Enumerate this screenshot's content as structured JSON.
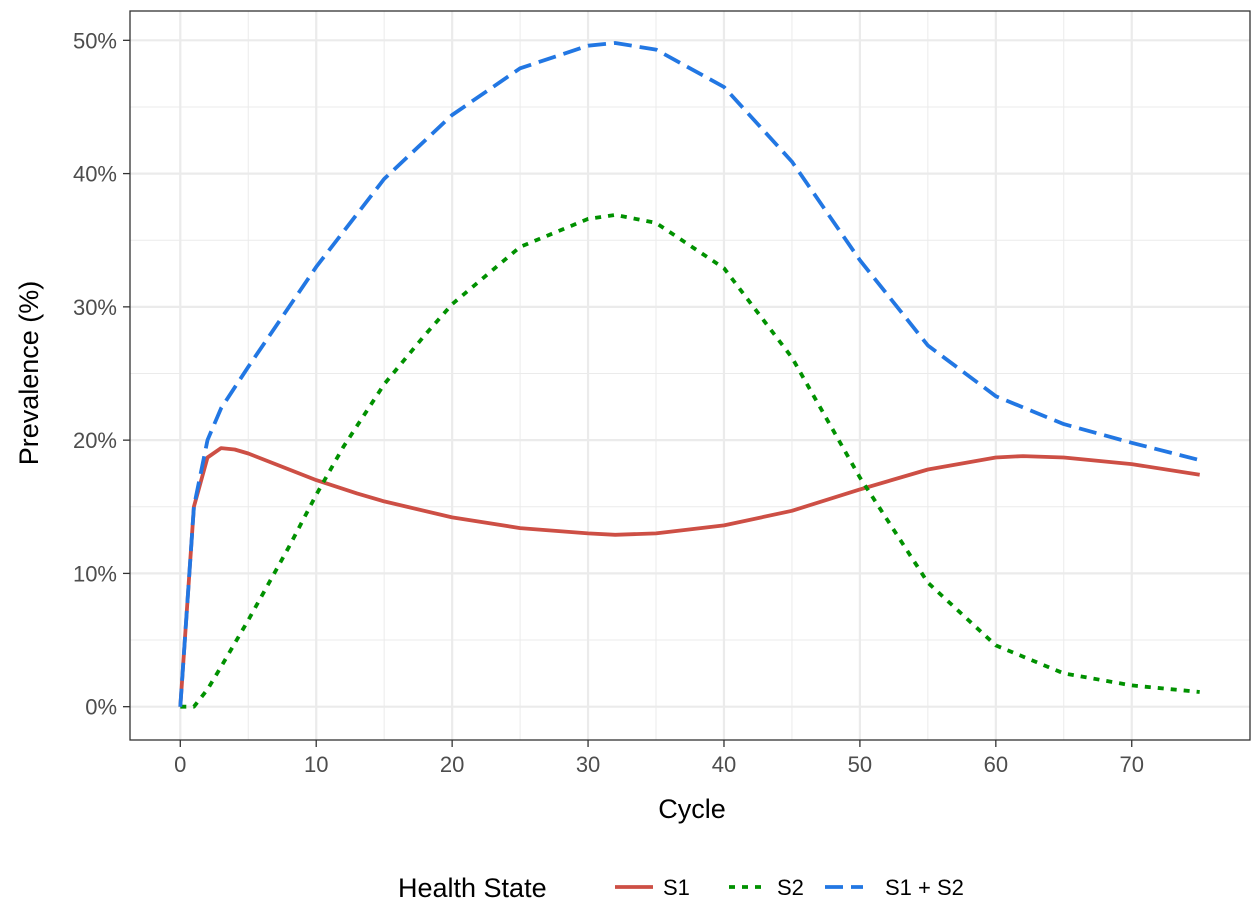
{
  "chart_data": {
    "type": "line",
    "xlabel": "Cycle",
    "ylabel": "Prevalence (%)",
    "xlim": [
      -3.7,
      78.7
    ],
    "ylim": [
      -2.5,
      52.2
    ],
    "x_ticks": [
      0,
      10,
      20,
      30,
      40,
      50,
      60,
      70
    ],
    "y_ticks": [
      0,
      10,
      20,
      30,
      40,
      50
    ],
    "y_tick_labels": [
      "0%",
      "10%",
      "20%",
      "30%",
      "40%",
      "50%"
    ],
    "grid": true,
    "legend": {
      "title": "Health State",
      "position": "bottom"
    },
    "series": [
      {
        "name": "S1",
        "color": "#cd4f45",
        "dash": "solid",
        "points": [
          [
            0,
            0
          ],
          [
            1,
            15
          ],
          [
            2,
            18.7
          ],
          [
            3,
            19.4
          ],
          [
            4,
            19.3
          ],
          [
            5,
            19.0
          ],
          [
            7,
            18.2
          ],
          [
            10,
            17.0
          ],
          [
            13,
            16.0
          ],
          [
            15,
            15.4
          ],
          [
            20,
            14.2
          ],
          [
            25,
            13.4
          ],
          [
            30,
            13.0
          ],
          [
            32,
            12.9
          ],
          [
            35,
            13.0
          ],
          [
            40,
            13.6
          ],
          [
            45,
            14.7
          ],
          [
            50,
            16.3
          ],
          [
            55,
            17.8
          ],
          [
            60,
            18.7
          ],
          [
            62,
            18.8
          ],
          [
            65,
            18.7
          ],
          [
            70,
            18.2
          ],
          [
            75,
            17.4
          ]
        ]
      },
      {
        "name": "S2",
        "color": "#009100",
        "dash": "dotted",
        "points": [
          [
            0,
            0
          ],
          [
            1,
            0
          ],
          [
            2,
            1.3
          ],
          [
            3,
            3.0
          ],
          [
            5,
            6.5
          ],
          [
            8,
            12.0
          ],
          [
            10,
            15.9
          ],
          [
            12,
            19.5
          ],
          [
            15,
            24.2
          ],
          [
            18,
            27.9
          ],
          [
            20,
            30.2
          ],
          [
            25,
            34.5
          ],
          [
            30,
            36.6
          ],
          [
            32,
            36.9
          ],
          [
            35,
            36.3
          ],
          [
            40,
            32.9
          ],
          [
            45,
            26.2
          ],
          [
            50,
            17.2
          ],
          [
            55,
            9.3
          ],
          [
            60,
            4.6
          ],
          [
            65,
            2.5
          ],
          [
            70,
            1.6
          ],
          [
            75,
            1.1
          ]
        ]
      },
      {
        "name": "S1 + S2",
        "color": "#2277e3",
        "dash": "dashed",
        "points": [
          [
            0,
            0
          ],
          [
            1,
            15
          ],
          [
            2,
            20.0
          ],
          [
            3,
            22.4
          ],
          [
            5,
            25.5
          ],
          [
            8,
            30.0
          ],
          [
            10,
            33.0
          ],
          [
            15,
            39.6
          ],
          [
            20,
            44.4
          ],
          [
            25,
            47.9
          ],
          [
            30,
            49.6
          ],
          [
            32,
            49.8
          ],
          [
            35,
            49.3
          ],
          [
            40,
            46.5
          ],
          [
            45,
            40.9
          ],
          [
            50,
            33.5
          ],
          [
            55,
            27.1
          ],
          [
            60,
            23.3
          ],
          [
            65,
            21.2
          ],
          [
            70,
            19.8
          ],
          [
            75,
            18.5
          ]
        ]
      }
    ]
  }
}
